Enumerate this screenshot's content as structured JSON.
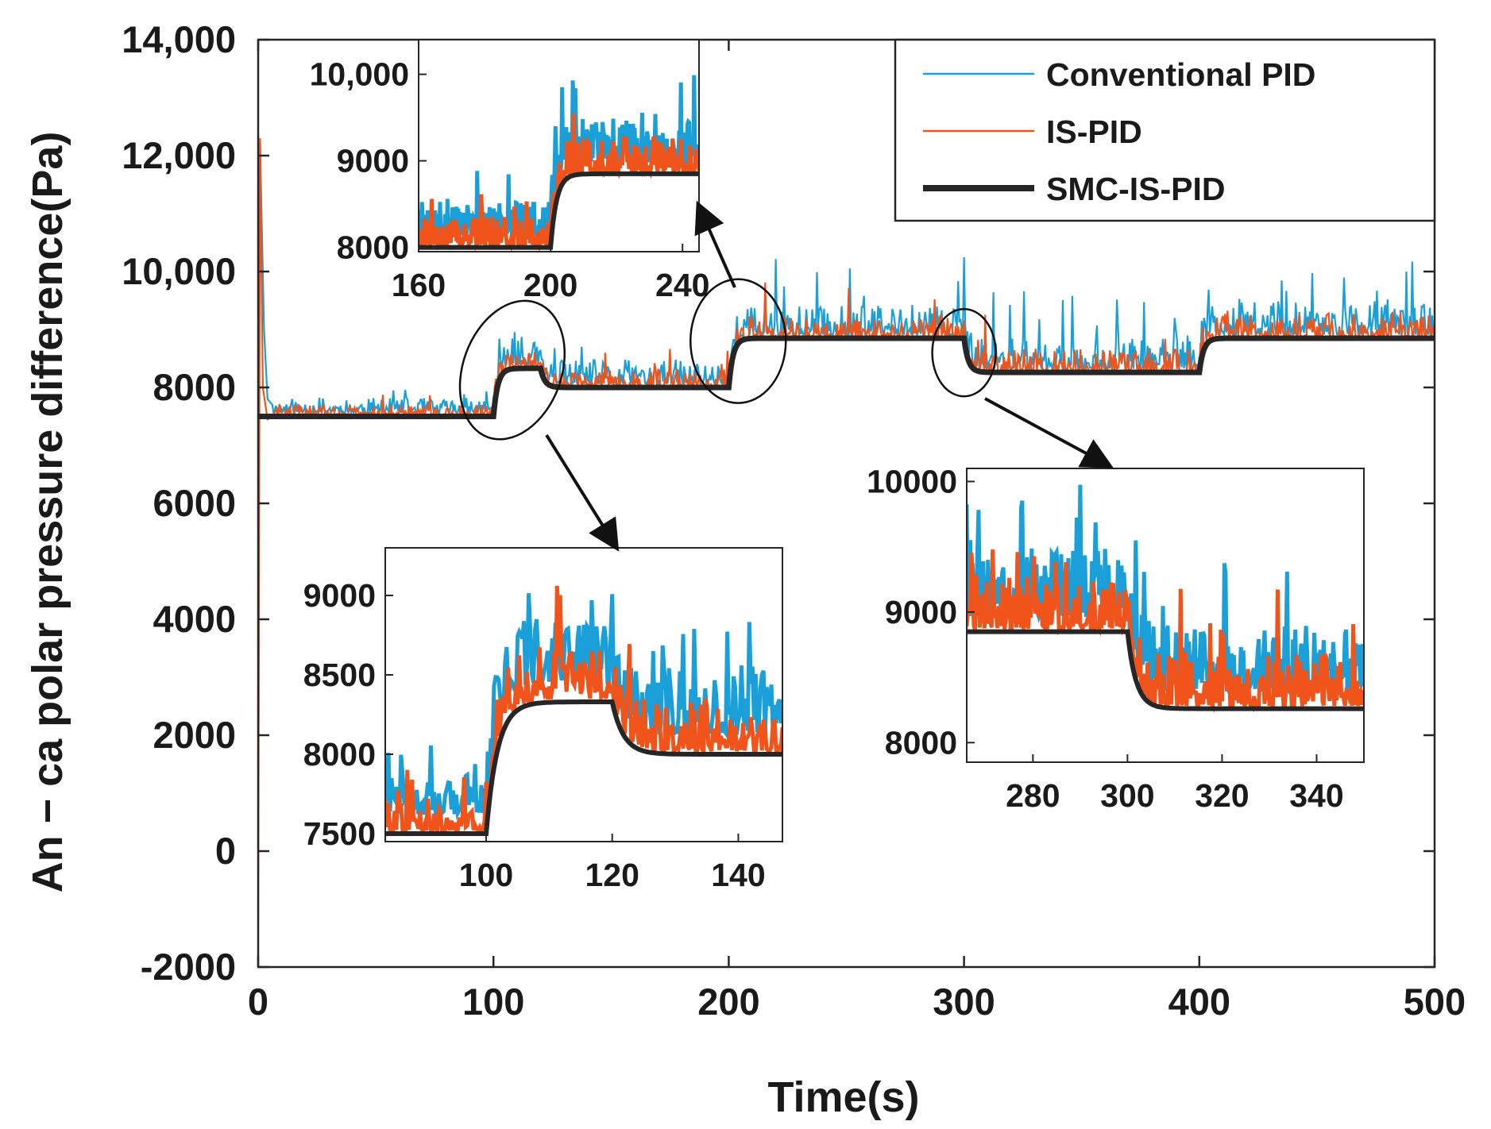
{
  "chart_data": {
    "type": "line",
    "xlabel": "Time(s)",
    "ylabel": "An − ca polar pressure difference(Pa)",
    "xlim": [
      0,
      500
    ],
    "ylim": [
      -2000,
      14000
    ],
    "xticks": [
      0,
      100,
      200,
      300,
      400,
      500
    ],
    "xtick_labels": [
      "0",
      "100",
      "200",
      "300",
      "400",
      "500"
    ],
    "yticks": [
      -2000,
      0,
      2000,
      4000,
      6000,
      8000,
      10000,
      12000,
      14000
    ],
    "ytick_labels": [
      "-2000",
      "0",
      "2000",
      "4000",
      "6000",
      "8000",
      "10,000",
      "12,000",
      "14,000"
    ],
    "grid": false,
    "legend_position": "top-right",
    "colors": {
      "Conventional PID": "#1a9fd8",
      "IS-PID": "#f0541a",
      "SMC-IS-PID": "#262626"
    },
    "series": [
      {
        "name": "Conventional PID",
        "color": "#1a9fd8",
        "x": [
          0,
          1,
          2,
          4,
          6,
          10,
          50,
          95,
          100,
          120,
          140,
          195,
          200,
          250,
          300,
          310,
          350,
          395,
          400,
          450,
          500
        ],
        "y": [
          7500,
          12200,
          9000,
          7800,
          7700,
          7650,
          7700,
          7750,
          8500,
          8300,
          8250,
          8300,
          9300,
          9200,
          9150,
          8600,
          8700,
          8700,
          9300,
          9400,
          9500
        ]
      },
      {
        "name": "IS-PID",
        "color": "#f0541a",
        "x": [
          0,
          1,
          2,
          4,
          6,
          10,
          50,
          95,
          100,
          120,
          140,
          195,
          200,
          250,
          300,
          310,
          350,
          395,
          400,
          450,
          500
        ],
        "y": [
          -1200,
          12300,
          8000,
          7450,
          7500,
          7500,
          7550,
          7600,
          8450,
          8050,
          8100,
          8100,
          9000,
          9000,
          8950,
          8350,
          8400,
          8400,
          9000,
          9050,
          9100
        ]
      },
      {
        "name": "SMC-IS-PID",
        "color": "#262626",
        "x": [
          0,
          100,
          120,
          200,
          300,
          400,
          500
        ],
        "y": [
          7500,
          8330,
          8000,
          8850,
          8260,
          8850,
          8850
        ],
        "step_values": [
          7500,
          8330,
          8000,
          8850,
          8260,
          8850
        ],
        "step_times": [
          0,
          100,
          120,
          200,
          300,
          400
        ]
      }
    ],
    "insets": [
      {
        "xlim": [
          84,
          147
        ],
        "ylim": [
          7450,
          9300
        ],
        "xticks": [
          100,
          120,
          140
        ],
        "xtick_labels": [
          "100",
          "120",
          "140"
        ],
        "yticks": [
          7500,
          8000,
          8500,
          9000
        ],
        "ytick_labels": [
          "7500",
          "8000",
          "8500",
          "9000"
        ],
        "zoom_center": [
          108,
          8300
        ]
      },
      {
        "xlim": [
          160,
          245
        ],
        "ylim": [
          7950,
          10400
        ],
        "xticks": [
          160,
          200,
          240
        ],
        "xtick_labels": [
          "160",
          "200",
          "240"
        ],
        "yticks": [
          8000,
          9000,
          10000
        ],
        "ytick_labels": [
          "8000",
          "9000",
          "10,000"
        ],
        "zoom_center": [
          204,
          8800
        ]
      },
      {
        "xlim": [
          266,
          350
        ],
        "ylim": [
          7850,
          10100
        ],
        "xticks": [
          280,
          300,
          320,
          340
        ],
        "xtick_labels": [
          "280",
          "300",
          "320",
          "340"
        ],
        "yticks": [
          8000,
          9000,
          10000
        ],
        "ytick_labels": [
          "8000",
          "9000",
          "10000"
        ],
        "zoom_center": [
          300,
          8600
        ]
      }
    ]
  }
}
